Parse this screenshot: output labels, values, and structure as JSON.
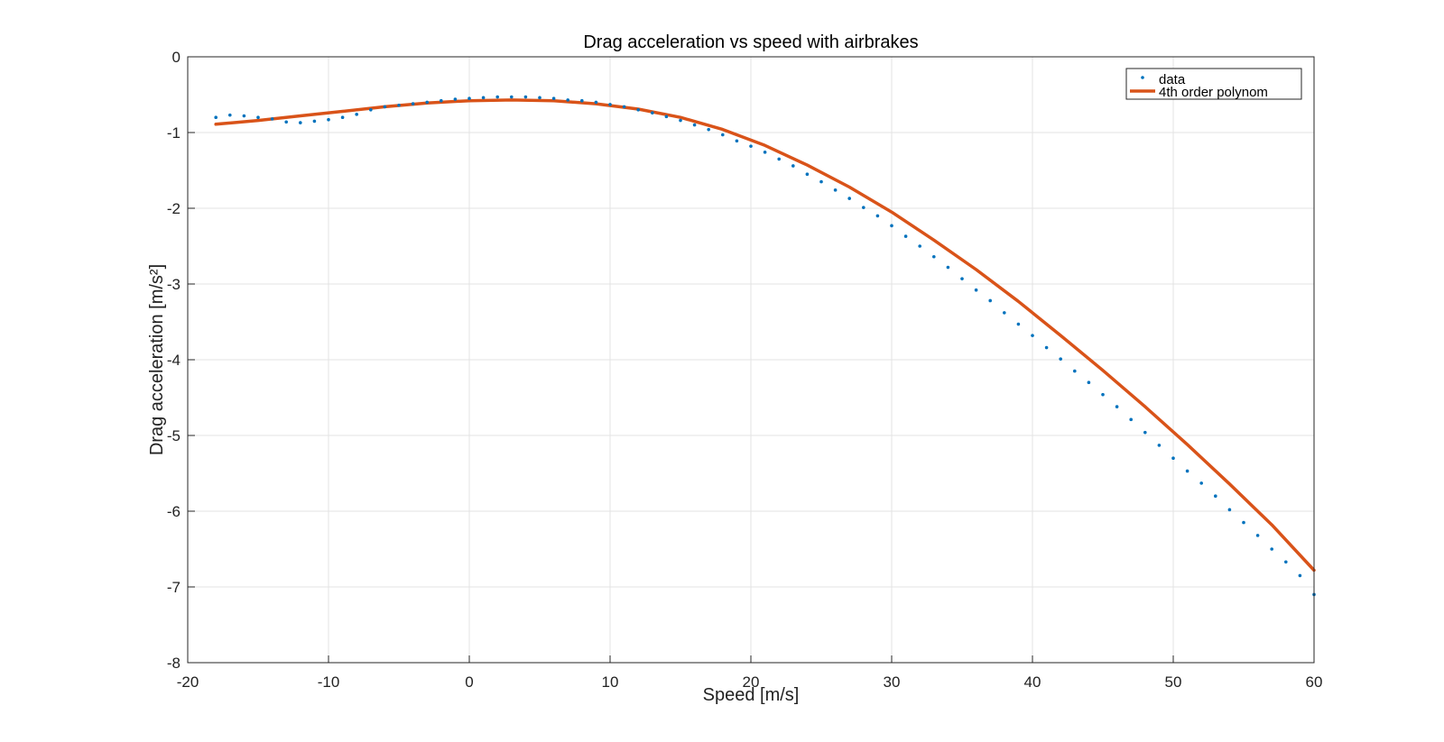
{
  "chart_data": {
    "type": "scatter",
    "title": "Drag acceleration vs speed with airbrakes",
    "xlabel": "Speed [m/s]",
    "ylabel": "Drag acceleration [m/s²]",
    "xlim": [
      -20,
      60
    ],
    "ylim": [
      -8,
      0
    ],
    "xticks": [
      -20,
      -10,
      0,
      10,
      20,
      30,
      40,
      50,
      60
    ],
    "yticks": [
      0,
      -1,
      -2,
      -3,
      -4,
      -5,
      -6,
      -7,
      -8
    ],
    "grid": true,
    "legend_position": "top-right",
    "colors": {
      "data": "#0072BD",
      "fit": "#D95319",
      "grid": "#e3e3e3",
      "axis": "#262626"
    },
    "series": [
      {
        "name": "data",
        "kind": "scatter",
        "x": [
          -18,
          -17,
          -16,
          -15,
          -14,
          -13,
          -12,
          -11,
          -10,
          -9,
          -8,
          -7,
          -6,
          -5,
          -4,
          -3,
          -2,
          -1,
          0,
          1,
          2,
          3,
          4,
          5,
          6,
          7,
          8,
          9,
          10,
          11,
          12,
          13,
          14,
          15,
          16,
          17,
          18,
          19,
          20,
          21,
          22,
          23,
          24,
          25,
          26,
          27,
          28,
          29,
          30,
          31,
          32,
          33,
          34,
          35,
          36,
          37,
          38,
          39,
          40,
          41,
          42,
          43,
          44,
          45,
          46,
          47,
          48,
          49,
          50,
          51,
          52,
          53,
          54,
          55,
          56,
          57,
          58,
          59,
          60
        ],
        "y": [
          -0.8,
          -0.77,
          -0.78,
          -0.8,
          -0.82,
          -0.86,
          -0.87,
          -0.85,
          -0.83,
          -0.8,
          -0.76,
          -0.7,
          -0.66,
          -0.64,
          -0.62,
          -0.6,
          -0.58,
          -0.56,
          -0.55,
          -0.54,
          -0.53,
          -0.53,
          -0.53,
          -0.54,
          -0.55,
          -0.57,
          -0.58,
          -0.6,
          -0.63,
          -0.66,
          -0.7,
          -0.74,
          -0.79,
          -0.84,
          -0.9,
          -0.96,
          -1.03,
          -1.11,
          -1.18,
          -1.26,
          -1.35,
          -1.44,
          -1.55,
          -1.65,
          -1.76,
          -1.87,
          -1.99,
          -2.1,
          -2.23,
          -2.37,
          -2.5,
          -2.64,
          -2.78,
          -2.93,
          -3.08,
          -3.22,
          -3.38,
          -3.53,
          -3.68,
          -3.84,
          -3.99,
          -4.15,
          -4.3,
          -4.46,
          -4.62,
          -4.79,
          -4.96,
          -5.13,
          -5.3,
          -5.47,
          -5.63,
          -5.8,
          -5.98,
          -6.15,
          -6.32,
          -6.5,
          -6.67,
          -6.85,
          -7.1
        ]
      },
      {
        "name": "4th order polynom",
        "kind": "line",
        "x": [
          -18,
          -15,
          -12,
          -9,
          -6,
          -3,
          0,
          3,
          6,
          9,
          12,
          15,
          18,
          21,
          24,
          27,
          30,
          33,
          36,
          39,
          42,
          45,
          48,
          51,
          54,
          57,
          60
        ],
        "y": [
          -0.89,
          -0.84,
          -0.78,
          -0.72,
          -0.66,
          -0.61,
          -0.58,
          -0.57,
          -0.58,
          -0.62,
          -0.69,
          -0.8,
          -0.96,
          -1.17,
          -1.43,
          -1.72,
          -2.05,
          -2.42,
          -2.81,
          -3.23,
          -3.68,
          -4.14,
          -4.62,
          -5.12,
          -5.64,
          -6.18,
          -6.78
        ]
      }
    ]
  }
}
